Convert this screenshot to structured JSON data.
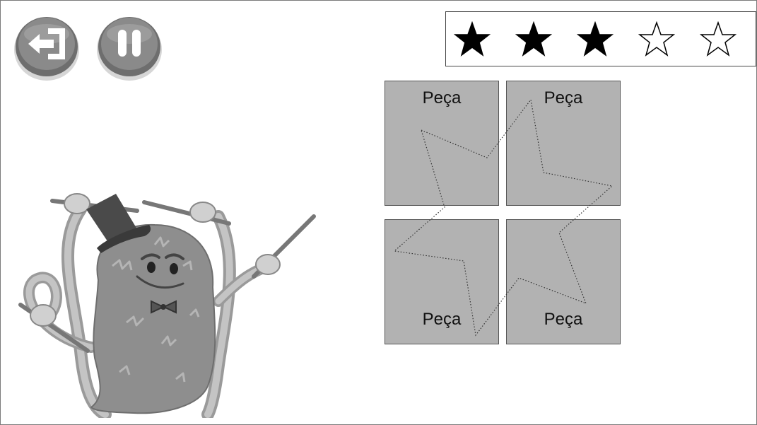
{
  "toolbar": {
    "exit_icon": "exit-arrow-icon",
    "pause_icon": "pause-icon",
    "button_color": "#8a8a8a"
  },
  "rating": {
    "filled": 3,
    "total": 5
  },
  "puzzle": {
    "pieces": [
      {
        "label": "Peça"
      },
      {
        "label": "Peça"
      },
      {
        "label": "Peça"
      },
      {
        "label": "Peça"
      }
    ],
    "piece_color": "#b2b2b2"
  },
  "character": {
    "name_icon": "monster-conductor-icon"
  }
}
